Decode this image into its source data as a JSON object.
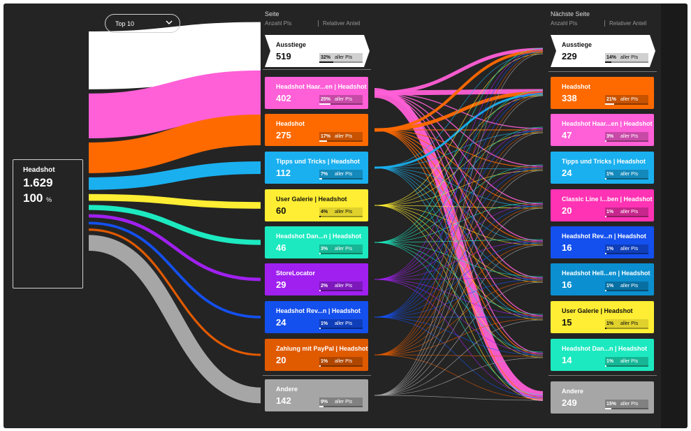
{
  "dropdown": {
    "label": "Top 10"
  },
  "source": {
    "name": "Headshot",
    "count": "1.629",
    "percent": "100",
    "percent_unit": "%"
  },
  "columns": {
    "middle": {
      "title": "Seite",
      "sub_count": "Anzahl PIs",
      "sub_share": "Relativer Anteil"
    },
    "right": {
      "title": "Nächste Seite",
      "sub_count": "Anzahl PIs",
      "sub_share": "Relativer Anteil"
    }
  },
  "share_unit": "aller PIs",
  "middle_nodes": [
    {
      "name": "Ausstiege",
      "count": "519",
      "pct": "32%",
      "share": 0.32,
      "color": "#ffffff",
      "kind": "exit"
    },
    {
      "name": "Headshot Haar...en | Headshot",
      "count": "402",
      "pct": "25%",
      "share": 0.25,
      "color": "#ff5fd7"
    },
    {
      "name": "Headshot",
      "count": "275",
      "pct": "17%",
      "share": 0.17,
      "color": "#ff6a00"
    },
    {
      "name": "Tipps und Tricks | Headshot",
      "count": "112",
      "pct": "7%",
      "share": 0.07,
      "color": "#1ab0f0"
    },
    {
      "name": "User Galerie | Headshot",
      "count": "60",
      "pct": "4%",
      "share": 0.04,
      "color": "#ffee33",
      "dark": true
    },
    {
      "name": "Headshot Dan...n | Headshot",
      "count": "46",
      "pct": "3%",
      "share": 0.03,
      "color": "#1de9c0"
    },
    {
      "name": "StoreLocator",
      "count": "29",
      "pct": "2%",
      "share": 0.02,
      "color": "#a020f0"
    },
    {
      "name": "Headshot Rev...n | Headshot",
      "count": "24",
      "pct": "1%",
      "share": 0.01,
      "color": "#1450ee"
    },
    {
      "name": "Zahlung mit PayPal | Headshot",
      "count": "20",
      "pct": "1%",
      "share": 0.01,
      "color": "#e05a00"
    },
    {
      "name": "Andere",
      "count": "142",
      "pct": "9%",
      "share": 0.09,
      "color": "#a6a6a6"
    }
  ],
  "right_nodes": [
    {
      "name": "Ausstiege",
      "count": "229",
      "pct": "14%",
      "share": 0.14,
      "color": "#ffffff",
      "kind": "exit"
    },
    {
      "name": "Headshot",
      "count": "338",
      "pct": "21%",
      "share": 0.21,
      "color": "#ff6a00"
    },
    {
      "name": "Headshot Haar...en | Headshot",
      "count": "47",
      "pct": "3%",
      "share": 0.03,
      "color": "#ff5fd7"
    },
    {
      "name": "Tipps und Tricks | Headshot",
      "count": "24",
      "pct": "1%",
      "share": 0.01,
      "color": "#1ab0f0"
    },
    {
      "name": "Classic Line l...ben | Headshot",
      "count": "20",
      "pct": "1%",
      "share": 0.01,
      "color": "#ff33b4"
    },
    {
      "name": "Headshot Rev...n | Headshot",
      "count": "16",
      "pct": "1%",
      "share": 0.01,
      "color": "#1450ee"
    },
    {
      "name": "Headshot Hell...en | Headshot",
      "count": "16",
      "pct": "1%",
      "share": 0.01,
      "color": "#0b8fd0"
    },
    {
      "name": "User Galerie | Headshot",
      "count": "15",
      "pct": "1%",
      "share": 0.01,
      "color": "#ffee33",
      "dark": true
    },
    {
      "name": "Headshot Dan...n | Headshot",
      "count": "14",
      "pct": "1%",
      "share": 0.01,
      "color": "#1de9c0"
    },
    {
      "name": "Andere",
      "count": "249",
      "pct": "15%",
      "share": 0.15,
      "color": "#a6a6a6"
    }
  ]
}
